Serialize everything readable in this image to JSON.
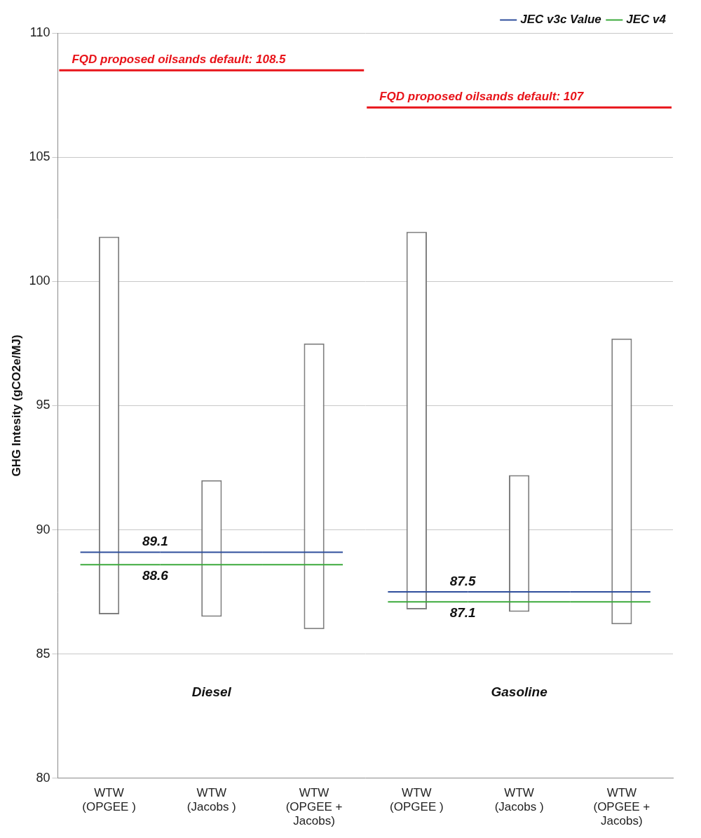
{
  "chart_data": {
    "type": "bar",
    "y_label": "GHG Intesity (gCO2e/MJ)",
    "categories": [
      [
        "WTW",
        "(OPGEE )"
      ],
      [
        "WTW",
        "(Jacobs )"
      ],
      [
        "WTW",
        "(OPGEE +",
        "Jacobs)"
      ],
      [
        "WTW",
        "(OPGEE )"
      ],
      [
        "WTW",
        "(Jacobs )"
      ],
      [
        "WTW",
        "(OPGEE +",
        "Jacobs)"
      ]
    ],
    "groups": [
      "Diesel",
      "Diesel",
      "Diesel",
      "Gasoline",
      "Gasoline",
      "Gasoline"
    ],
    "values": [
      [
        86.6,
        101.8
      ],
      [
        86.5,
        92.0
      ],
      [
        86.0,
        97.5
      ],
      [
        86.8,
        102.0
      ],
      [
        86.7,
        92.2
      ],
      [
        86.2,
        97.7
      ]
    ],
    "color": "#7f7f7f",
    "series": [
      {
        "name": "JEC v3c Value",
        "type": "line",
        "color": "#2f4e9c",
        "values": [
          89.1,
          89.1,
          89.1,
          87.5,
          87.5,
          87.5
        ]
      },
      {
        "name": "JEC v4",
        "type": "line",
        "color": "#3caa3c",
        "values": [
          88.6,
          88.6,
          88.6,
          87.1,
          87.1,
          87.1
        ]
      }
    ],
    "annotations": [
      {
        "text": "FQD proposed oilsands default: 108.5",
        "value": 108.5,
        "group": "Diesel",
        "color": "#e8141a"
      },
      {
        "text": "FQD proposed oilsands default: 107",
        "value": 107,
        "group": "Gasoline",
        "color": "#e8141a"
      }
    ],
    "ylim": [
      80,
      110
    ],
    "yticks": [
      80,
      85,
      90,
      95,
      100,
      105,
      110
    ],
    "grid": true,
    "legend": "upper right",
    "data_labels": true
  }
}
